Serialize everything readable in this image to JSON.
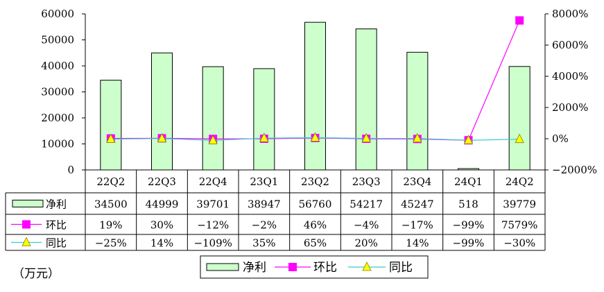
{
  "chart_data": {
    "type": "bar",
    "categories": [
      "22Q2",
      "22Q3",
      "22Q4",
      "23Q1",
      "23Q2",
      "23Q3",
      "23Q4",
      "24Q1",
      "24Q2"
    ],
    "series": [
      {
        "name": "净利",
        "kind": "bar",
        "axis": "left",
        "color": "#ccffcc",
        "values": [
          34500,
          44999,
          39701,
          38947,
          56760,
          54217,
          45247,
          518,
          39779
        ],
        "labels": [
          "34500",
          "44999",
          "39701",
          "38947",
          "56760",
          "54217",
          "45247",
          "518",
          "39779"
        ]
      },
      {
        "name": "环比",
        "kind": "line",
        "axis": "right",
        "color": "#ff00ff",
        "marker": "square",
        "values": [
          19,
          30,
          -12,
          -2,
          46,
          -4,
          -17,
          -99,
          7579
        ],
        "labels": [
          "19%",
          "30%",
          "-12%",
          "-2%",
          "46%",
          "-4%",
          "-17%",
          "-99%",
          "7579%"
        ]
      },
      {
        "name": "同比",
        "kind": "line",
        "axis": "right",
        "color": "#33cccc",
        "marker": "triangle",
        "marker_color": "#ffff00",
        "values": [
          -25,
          14,
          -109,
          35,
          65,
          20,
          14,
          -99,
          -30
        ],
        "labels": [
          "-25%",
          "14%",
          "-109%",
          "35%",
          "65%",
          "20%",
          "14%",
          "-99%",
          "-30%"
        ]
      }
    ],
    "y_left": {
      "min": 0,
      "max": 60000,
      "ticks": [
        0,
        10000,
        20000,
        30000,
        40000,
        50000,
        60000
      ]
    },
    "y_right": {
      "min": -2000,
      "max": 8000,
      "ticks": [
        -2000,
        0,
        2000,
        4000,
        6000,
        8000
      ],
      "tick_labels": [
        "-2000%",
        "0%",
        "2000%",
        "4000%",
        "6000%",
        "8000%"
      ]
    },
    "grid": false,
    "legend": "bottom",
    "data_table": true
  },
  "unit_label": "（万元）"
}
